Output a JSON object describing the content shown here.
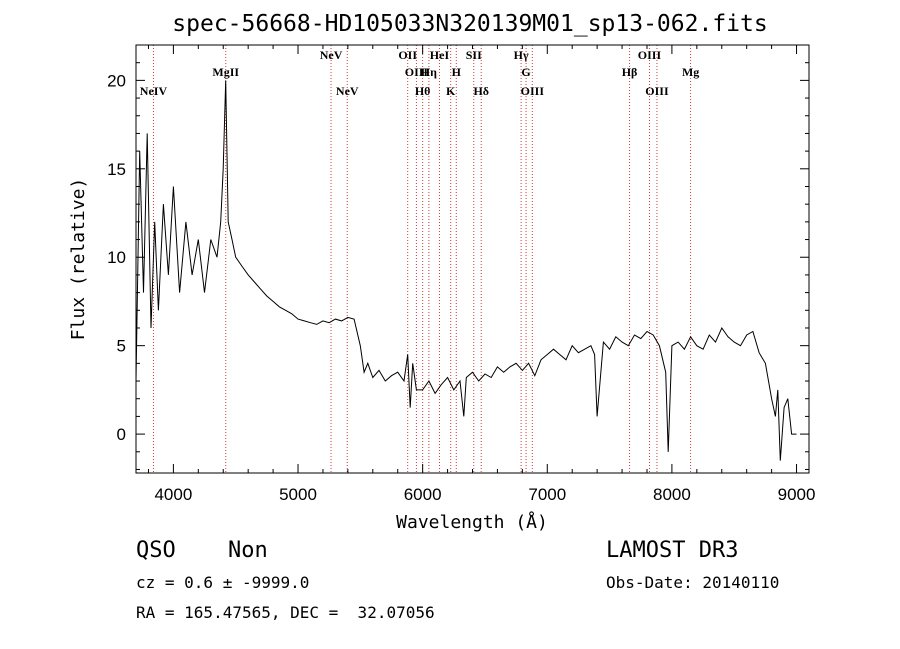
{
  "chart_data": {
    "type": "line",
    "title": "spec-56668-HD105033N320139M01_sp13-062.fits",
    "xlabel": "Wavelength (Å)",
    "ylabel": "Flux (relative)",
    "xlim": [
      3700,
      9100
    ],
    "ylim": [
      -2.2,
      22
    ],
    "xticks": [
      4000,
      5000,
      6000,
      7000,
      8000,
      9000
    ],
    "yticks": [
      0,
      5,
      10,
      15,
      20
    ],
    "grid": false,
    "series": [
      {
        "x": [
          3700,
          3730,
          3760,
          3790,
          3820,
          3850,
          3880,
          3920,
          3960,
          4000,
          4050,
          4100,
          4150,
          4200,
          4250,
          4300,
          4350,
          4380,
          4400,
          4420,
          4440,
          4470,
          4500,
          4550,
          4600,
          4650,
          4700,
          4750,
          4800,
          4850,
          4900,
          4950,
          5000,
          5050,
          5100,
          5150,
          5200,
          5250,
          5300,
          5350,
          5400,
          5450,
          5500,
          5530,
          5560,
          5600,
          5650,
          5700,
          5750,
          5800,
          5850,
          5880,
          5900,
          5920,
          5950,
          6000,
          6050,
          6100,
          6150,
          6200,
          6250,
          6300,
          6330,
          6350,
          6400,
          6450,
          6500,
          6550,
          6600,
          6650,
          6700,
          6750,
          6800,
          6850,
          6900,
          6950,
          7000,
          7050,
          7100,
          7150,
          7200,
          7250,
          7300,
          7350,
          7380,
          7400,
          7450,
          7500,
          7550,
          7600,
          7650,
          7700,
          7750,
          7800,
          7850,
          7900,
          7950,
          7970,
          8000,
          8050,
          8100,
          8150,
          8200,
          8250,
          8300,
          8350,
          8400,
          8450,
          8500,
          8550,
          8600,
          8650,
          8700,
          8750,
          8800,
          8830,
          8850,
          8870,
          8900,
          8930,
          8960,
          9000
        ],
        "y": [
          3,
          16,
          8,
          17,
          6,
          12,
          7,
          13,
          9,
          14,
          8,
          12,
          9,
          11,
          8,
          11,
          10,
          12,
          15,
          20,
          12,
          11,
          10,
          9.5,
          9,
          8.6,
          8.2,
          7.8,
          7.5,
          7.2,
          7.0,
          6.8,
          6.5,
          6.4,
          6.3,
          6.2,
          6.4,
          6.3,
          6.5,
          6.4,
          6.6,
          6.5,
          5.0,
          3.5,
          4.0,
          3.2,
          3.6,
          3.0,
          3.3,
          3.5,
          3.0,
          4.5,
          1.5,
          4.0,
          2.5,
          2.5,
          3.0,
          2.3,
          2.8,
          3.2,
          2.5,
          3.0,
          1.0,
          3.2,
          3.5,
          3.0,
          3.4,
          3.2,
          3.8,
          3.5,
          3.8,
          4.0,
          3.6,
          4.0,
          3.3,
          4.2,
          4.5,
          4.8,
          4.5,
          4.2,
          5.0,
          4.6,
          4.8,
          5.0,
          4.5,
          1.0,
          5.2,
          4.8,
          5.5,
          5.2,
          5.0,
          5.6,
          5.4,
          5.8,
          5.6,
          5.0,
          3.5,
          -1.0,
          5.0,
          5.2,
          4.8,
          5.5,
          5.0,
          4.8,
          5.6,
          5.2,
          6.0,
          5.5,
          5.2,
          5.0,
          5.6,
          5.8,
          4.6,
          4.0,
          2.0,
          1.0,
          2.5,
          -1.5,
          1.5,
          2.0,
          0.0,
          0.0
        ]
      }
    ],
    "line_markers": [
      {
        "label": "NeIV",
        "x": 3840,
        "row": 2
      },
      {
        "label": "MgII",
        "x": 4420,
        "row": 1
      },
      {
        "label": "NeV",
        "x": 5265,
        "row": 0
      },
      {
        "label": "NeV",
        "x": 5395,
        "row": 2
      },
      {
        "label": "OII",
        "x": 5880,
        "row": 0
      },
      {
        "label": "OIII",
        "x": 5950,
        "row": 1
      },
      {
        "label": "Hθ",
        "x": 6000,
        "row": 2
      },
      {
        "label": "Hη",
        "x": 6050,
        "row": 1
      },
      {
        "label": "HeI",
        "x": 6135,
        "row": 0
      },
      {
        "label": "K",
        "x": 6225,
        "row": 2
      },
      {
        "label": "H",
        "x": 6270,
        "row": 1
      },
      {
        "label": "SII",
        "x": 6410,
        "row": 0
      },
      {
        "label": "Hδ",
        "x": 6470,
        "row": 2
      },
      {
        "label": "Hγ",
        "x": 6790,
        "row": 0
      },
      {
        "label": "G",
        "x": 6830,
        "row": 1
      },
      {
        "label": "OIII",
        "x": 6880,
        "row": 2
      },
      {
        "label": "Hβ",
        "x": 7660,
        "row": 1
      },
      {
        "label": "OIII",
        "x": 7820,
        "row": 0
      },
      {
        "label": "OIII",
        "x": 7880,
        "row": 2
      },
      {
        "label": "Mg",
        "x": 8150,
        "row": 1
      }
    ],
    "marker_color": "#d33a3a"
  },
  "info": {
    "object_class": "QSO",
    "object_subclass": "Non",
    "cz": "cz = 0.6 ± -9999.0",
    "coords": "RA = 165.47565, DEC =  32.07056",
    "survey": "LAMOST DR3",
    "obs_date": "Obs-Date: 20140110"
  }
}
